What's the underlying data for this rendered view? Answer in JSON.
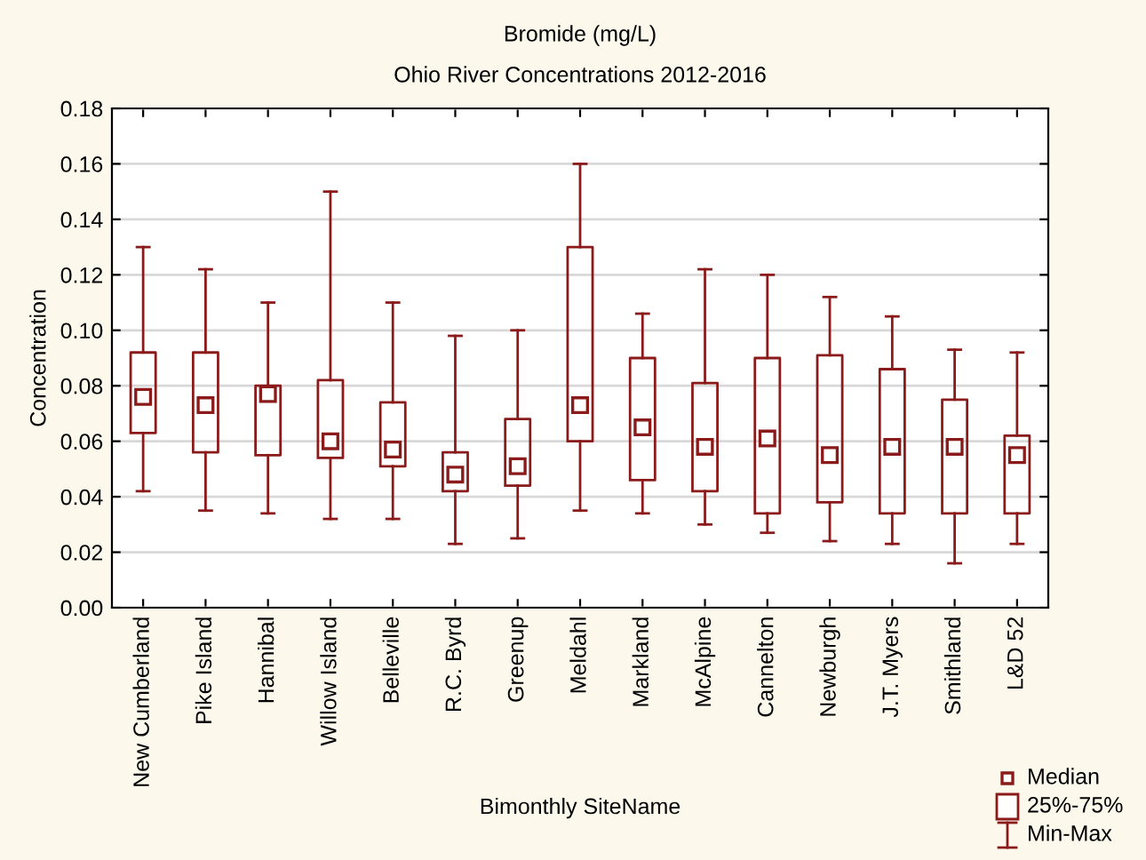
{
  "chart_data": {
    "type": "box",
    "title": "Bromide (mg/L)",
    "subtitle": "Ohio River Concentrations 2012-2016",
    "xlabel": "Bimonthly SiteName",
    "ylabel": "Concentration",
    "categories": [
      "New Cumberland",
      "Pike Island",
      "Hannibal",
      "Willow Island",
      "Belleville",
      "R.C. Byrd",
      "Greenup",
      "Meldahl",
      "Markland",
      "McAlpine",
      "Cannelton",
      "Newburgh",
      "J.T. Myers",
      "Smithland",
      "L&D 52"
    ],
    "series": [
      {
        "color": "#8b1a1a",
        "marker": "square",
        "boxes": [
          {
            "low": 0.042,
            "q1": 0.063,
            "median": 0.076,
            "q3": 0.092,
            "high": 0.13
          },
          {
            "low": 0.035,
            "q1": 0.056,
            "median": 0.073,
            "q3": 0.092,
            "high": 0.122
          },
          {
            "low": 0.034,
            "q1": 0.055,
            "median": 0.077,
            "q3": 0.08,
            "high": 0.11
          },
          {
            "low": 0.032,
            "q1": 0.054,
            "median": 0.06,
            "q3": 0.082,
            "high": 0.15
          },
          {
            "low": 0.032,
            "q1": 0.051,
            "median": 0.057,
            "q3": 0.074,
            "high": 0.11
          },
          {
            "low": 0.023,
            "q1": 0.042,
            "median": 0.048,
            "q3": 0.056,
            "high": 0.098
          },
          {
            "low": 0.025,
            "q1": 0.044,
            "median": 0.051,
            "q3": 0.068,
            "high": 0.1
          },
          {
            "low": 0.035,
            "q1": 0.06,
            "median": 0.073,
            "q3": 0.13,
            "high": 0.16
          },
          {
            "low": 0.034,
            "q1": 0.046,
            "median": 0.065,
            "q3": 0.09,
            "high": 0.106
          },
          {
            "low": 0.03,
            "q1": 0.042,
            "median": 0.058,
            "q3": 0.081,
            "high": 0.122
          },
          {
            "low": 0.027,
            "q1": 0.034,
            "median": 0.061,
            "q3": 0.09,
            "high": 0.12
          },
          {
            "low": 0.024,
            "q1": 0.038,
            "median": 0.055,
            "q3": 0.091,
            "high": 0.112
          },
          {
            "low": 0.023,
            "q1": 0.034,
            "median": 0.058,
            "q3": 0.086,
            "high": 0.105
          },
          {
            "low": 0.016,
            "q1": 0.034,
            "median": 0.058,
            "q3": 0.075,
            "high": 0.093
          },
          {
            "low": 0.023,
            "q1": 0.034,
            "median": 0.055,
            "q3": 0.062,
            "high": 0.092
          }
        ]
      }
    ],
    "annotations": [
      "Median",
      "25%-75%",
      "Min-Max"
    ],
    "ylim": [
      0,
      0.18
    ],
    "yticks": [
      {
        "value": 0,
        "label": "0.00"
      },
      {
        "value": 0.02,
        "label": "0.02"
      },
      {
        "value": 0.04,
        "label": "0.04"
      },
      {
        "value": 0.06,
        "label": "0.06"
      },
      {
        "value": 0.08,
        "label": "0.08"
      },
      {
        "value": 0.1,
        "label": "0.10"
      },
      {
        "value": 0.12,
        "label": "0.12"
      },
      {
        "value": 0.14,
        "label": "0.14"
      },
      {
        "value": 0.16,
        "label": "0.16"
      },
      {
        "value": 0.18,
        "label": "0.18"
      }
    ],
    "grid": "y"
  }
}
